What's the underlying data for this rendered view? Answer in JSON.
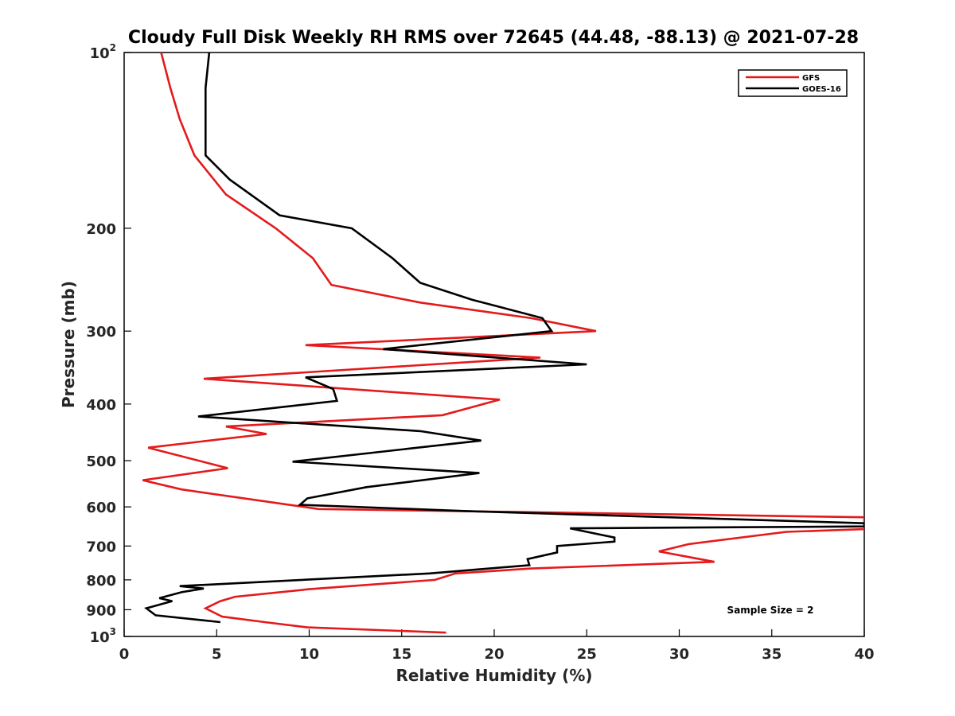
{
  "chart_data": {
    "type": "line",
    "title": "Cloudy Full Disk Weekly RH RMS over 72645 (44.48, -88.13) @ 2021-07-28",
    "xlabel": "Relative Humidity (%)",
    "ylabel": "Pressure (mb)",
    "xlim": [
      0,
      40
    ],
    "ylim": [
      100,
      1000
    ],
    "yscale": "log",
    "y_reversed": true,
    "grid": false,
    "legend_position": "top-right",
    "x_ticks": [
      "0",
      "5",
      "10",
      "15",
      "20",
      "25",
      "30",
      "35",
      "40"
    ],
    "y_ticks": [
      {
        "value": 100,
        "base": "10",
        "exp": "2"
      },
      {
        "value": 200,
        "base": "200",
        "exp": ""
      },
      {
        "value": 300,
        "base": "300",
        "exp": ""
      },
      {
        "value": 400,
        "base": "400",
        "exp": ""
      },
      {
        "value": 500,
        "base": "500",
        "exp": ""
      },
      {
        "value": 600,
        "base": "600",
        "exp": ""
      },
      {
        "value": 700,
        "base": "700",
        "exp": ""
      },
      {
        "value": 800,
        "base": "800",
        "exp": ""
      },
      {
        "value": 900,
        "base": "900",
        "exp": ""
      },
      {
        "value": 1000,
        "base": "10",
        "exp": "3"
      }
    ],
    "annotation": "Sample Size = 2",
    "series": [
      {
        "name": "GFS",
        "color": "#e41a1c",
        "points": [
          [
            2.0,
            100
          ],
          [
            2.5,
            115
          ],
          [
            3.0,
            130
          ],
          [
            3.8,
            150
          ],
          [
            5.5,
            175
          ],
          [
            8.2,
            200
          ],
          [
            10.2,
            225
          ],
          [
            11.2,
            250
          ],
          [
            16.0,
            268
          ],
          [
            22.0,
            285
          ],
          [
            25.5,
            300
          ],
          [
            9.8,
            317
          ],
          [
            22.5,
            333
          ],
          [
            4.3,
            362
          ],
          [
            20.3,
            393
          ],
          [
            17.2,
            418
          ],
          [
            5.5,
            437
          ],
          [
            7.7,
            450
          ],
          [
            1.3,
            475
          ],
          [
            5.6,
            515
          ],
          [
            1.0,
            540
          ],
          [
            3.1,
            560
          ],
          [
            10.5,
            605
          ],
          [
            40.0,
            625
          ],
          [
            40.0,
            655
          ],
          [
            35.8,
            662
          ],
          [
            30.5,
            695
          ],
          [
            28.9,
            715
          ],
          [
            31.9,
            745
          ],
          [
            22.0,
            765
          ],
          [
            17.9,
            780
          ],
          [
            16.8,
            800
          ],
          [
            10.0,
            830
          ],
          [
            6.0,
            855
          ],
          [
            5.2,
            870
          ],
          [
            4.4,
            895
          ],
          [
            5.3,
            925
          ],
          [
            7.6,
            945
          ],
          [
            9.9,
            965
          ],
          [
            17.4,
            985
          ]
        ]
      },
      {
        "name": "GOES-16",
        "color": "#000000",
        "points": [
          [
            4.6,
            100
          ],
          [
            4.4,
            115
          ],
          [
            4.4,
            130
          ],
          [
            4.4,
            150
          ],
          [
            5.7,
            165
          ],
          [
            8.4,
            190
          ],
          [
            12.3,
            200
          ],
          [
            14.5,
            225
          ],
          [
            16.0,
            248
          ],
          [
            18.8,
            265
          ],
          [
            22.6,
            285
          ],
          [
            23.1,
            300
          ],
          [
            14.0,
            322
          ],
          [
            25.0,
            342
          ],
          [
            9.8,
            360
          ],
          [
            11.3,
            377
          ],
          [
            11.5,
            395
          ],
          [
            4.0,
            420
          ],
          [
            16.0,
            445
          ],
          [
            19.3,
            462
          ],
          [
            9.1,
            502
          ],
          [
            19.2,
            525
          ],
          [
            13.1,
            555
          ],
          [
            9.9,
            580
          ],
          [
            9.5,
            595
          ],
          [
            18.5,
            610
          ],
          [
            40.0,
            640
          ],
          [
            40.0,
            648
          ],
          [
            24.1,
            653
          ],
          [
            26.5,
            677
          ],
          [
            26.5,
            688
          ],
          [
            23.4,
            700
          ],
          [
            23.4,
            718
          ],
          [
            21.8,
            737
          ],
          [
            21.9,
            755
          ],
          [
            16.5,
            780
          ],
          [
            3.0,
            820
          ],
          [
            4.3,
            828
          ],
          [
            3.1,
            840
          ],
          [
            1.9,
            860
          ],
          [
            2.6,
            870
          ],
          [
            1.2,
            895
          ],
          [
            1.7,
            920
          ],
          [
            5.2,
            945
          ]
        ]
      }
    ]
  }
}
